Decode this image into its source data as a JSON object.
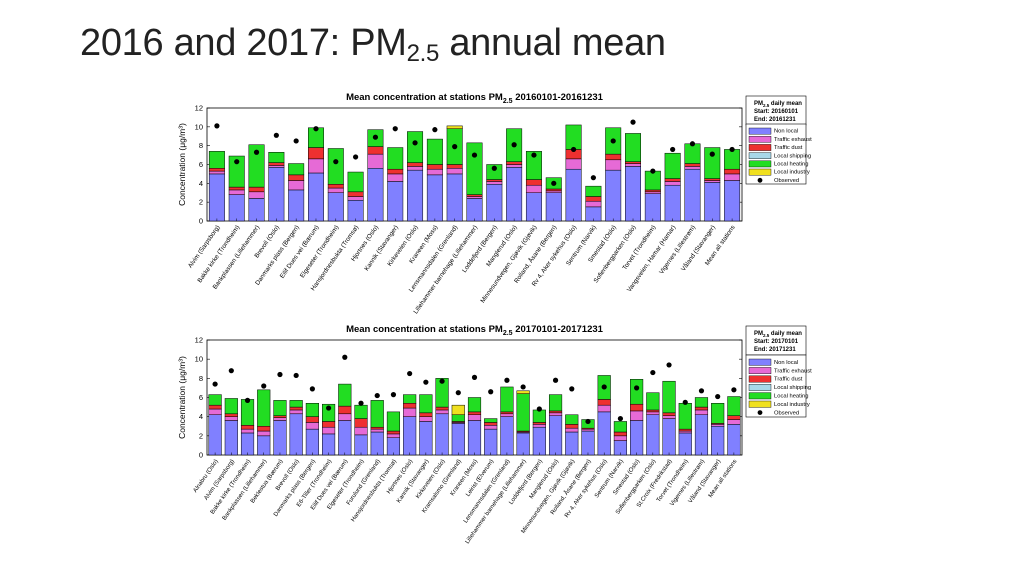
{
  "slide": {
    "title_main": "2016 and 2017: PM",
    "title_sub": "2.5",
    "title_rest": " annual mean"
  },
  "legend_labels": [
    "Non local",
    "Traffic exhaust",
    "Traffic dust",
    "Local shipping",
    "Local heating",
    "Local industry",
    "Observed"
  ],
  "component_colors": [
    "#8080ff",
    "#e66ad6",
    "#ee3030",
    "#a8d8e8",
    "#22dd22",
    "#f0e020"
  ],
  "observed_color": "#000000",
  "chart_data": [
    {
      "type": "bar",
      "stacked": true,
      "title_main": "Mean concentration at stations PM",
      "title_sub": "2.5",
      "title_rest": " 20160101-20161231",
      "ylabel": "Concentration (μg/m³)",
      "ylim": [
        0,
        12
      ],
      "yticks": [
        0,
        2,
        4,
        6,
        8,
        10,
        12
      ],
      "legend_header": {
        "line1": "PM",
        "line1_sub": "2.5",
        "line1_rest": " daily mean",
        "line2": "Start: 20160101",
        "line3": "End:  20161231"
      },
      "categories": [
        "Alvim (Sarpsborg)",
        "Bakke kirke (Trondheim)",
        "Bankplassen (Lillehammer)",
        "Brevoll (Oslo)",
        "Danmarks plass (Bergen)",
        "Eilif Dues vei (Bærum)",
        "Elgeseter (Trondheim)",
        "Hansjordnesbukta (Tromsø)",
        "Hjortnes (Oslo)",
        "Kannik (Stavanger)",
        "Kirkeveien (Oslo)",
        "Kraneen (Moss)",
        "Lensmannsdalen (Grenland)",
        "Lillehammer barnehage (Lillehammer)",
        "Loddefjord (Bergen)",
        "Manglerud (Oslo)",
        "Minnesundvegen, Gjøvik (Gjøvik)",
        "Rolland, Åsane (Bergen)",
        "Rv 4, Aker sykehus (Oslo)",
        "Sentrum (Narvik)",
        "Smestad (Oslo)",
        "Sofienbergparken (Oslo)",
        "Torvet (Trondheim)",
        "Vangsveien, Hamar (Hamar)",
        "Vigernes (Lillestrøm)",
        "Våland (Stavanger)",
        "Mean all stations"
      ],
      "series": [
        {
          "name": "Non local",
          "values": [
            5.0,
            2.8,
            2.4,
            5.7,
            3.3,
            5.1,
            3.0,
            2.2,
            5.6,
            4.2,
            5.4,
            4.9,
            5.0,
            2.4,
            3.9,
            5.7,
            3.0,
            3.0,
            5.5,
            1.5,
            5.4,
            5.8,
            2.9,
            3.8,
            5.5,
            4.1,
            4.3
          ]
        },
        {
          "name": "Traffic exhaust",
          "values": [
            0.3,
            0.5,
            0.7,
            0.2,
            1.0,
            1.5,
            0.5,
            0.4,
            1.5,
            0.8,
            0.4,
            0.6,
            0.6,
            0.2,
            0.3,
            0.3,
            0.8,
            0.2,
            1.1,
            0.6,
            1.1,
            0.3,
            0.2,
            0.4,
            0.3,
            0.2,
            0.7
          ]
        },
        {
          "name": "Traffic dust",
          "values": [
            0.3,
            0.3,
            0.5,
            0.3,
            0.6,
            1.2,
            0.4,
            0.5,
            0.8,
            0.5,
            0.4,
            0.5,
            0.4,
            0.2,
            0.2,
            0.3,
            0.6,
            0.2,
            1.0,
            0.5,
            0.6,
            0.2,
            0.2,
            0.3,
            0.3,
            0.2,
            0.5
          ]
        },
        {
          "name": "Local shipping",
          "values": [
            0,
            0,
            0,
            0,
            0,
            0,
            0,
            0,
            0,
            0,
            0,
            0,
            0,
            0,
            0,
            0,
            0,
            0,
            0,
            0,
            0,
            0,
            0,
            0,
            0,
            0,
            0
          ]
        },
        {
          "name": "Local heating",
          "values": [
            1.8,
            3.3,
            4.5,
            1.1,
            1.2,
            2.1,
            3.8,
            2.1,
            1.8,
            2.3,
            3.3,
            2.7,
            3.8,
            5.5,
            1.6,
            3.5,
            3.0,
            1.2,
            2.6,
            1.1,
            2.8,
            3.0,
            2.0,
            2.7,
            2.1,
            3.3,
            2.1
          ]
        },
        {
          "name": "Local industry",
          "values": [
            0,
            0,
            0,
            0,
            0,
            0,
            0,
            0,
            0,
            0,
            0,
            0,
            0.3,
            0,
            0,
            0,
            0,
            0,
            0,
            0,
            0,
            0,
            0,
            0,
            0,
            0,
            0
          ]
        }
      ],
      "observed": [
        10.1,
        6.3,
        7.3,
        9.1,
        8.5,
        9.8,
        6.3,
        6.8,
        8.9,
        9.8,
        8.3,
        9.7,
        7.9,
        7.0,
        5.6,
        8.1,
        7.0,
        4.0,
        7.6,
        4.6,
        8.5,
        10.5,
        5.3,
        7.6,
        8.2,
        7.1,
        7.6
      ]
    },
    {
      "type": "bar",
      "stacked": true,
      "title_main": "Mean concentration at stations PM",
      "title_sub": "2.5",
      "title_rest": " 20170101-20171231",
      "ylabel": "Concentration (μg/m³)",
      "ylim": [
        0,
        12
      ],
      "yticks": [
        0,
        2,
        4,
        6,
        8,
        10,
        12
      ],
      "legend_header": {
        "line1": "PM",
        "line1_sub": "2.5",
        "line1_rest": " daily mean",
        "line2": "Start: 20170101",
        "line3": "End:  20171231"
      },
      "categories": [
        "Alnabru (Oslo)",
        "Alvim (Sarpsborg)",
        "Bakke kirke (Trondheim)",
        "Bankplassen (Lillehammer)",
        "Beklestua (Bærum)",
        "Brevoll (Oslo)",
        "Danmarks plass (Bergen)",
        "E6-Tiller (Trondheim)",
        "Eilif Dues vei (Bærum)",
        "Elgeseter (Trondheim)",
        "Furulund (Grenland)",
        "Hansjordnesbukta (Tromsø)",
        "Hjortnes (Oslo)",
        "Kannik (Stavanger)",
        "Kirkeveien (Oslo)",
        "Kramsalsmo (Grenland)",
        "Kraneen (Moss)",
        "Leirist (Elverum)",
        "Lensmannsdalen (Grenland)",
        "Lillehammer barnehage (Lillehammer)",
        "Loddefjord (Bergen)",
        "Manglerud (Oslo)",
        "Minnesundvegen, Gjøvik (Gjøvik)",
        "Rolland, Åsane (Bergen)",
        "Rv 4, Aker sykehus (Oslo)",
        "Sentrum (Narvik)",
        "Smestad (Oslo)",
        "Sofienbergparken (Oslo)",
        "St.Croix (Fredrikstad)",
        "Torvet (Trondheim)",
        "Vigernes (Lillestrøm)",
        "Våland (Stavanger)",
        "Mean all stations"
      ],
      "series": [
        {
          "name": "Non local",
          "values": [
            4.2,
            3.6,
            2.3,
            2.0,
            3.6,
            4.3,
            2.7,
            2.2,
            3.6,
            2.1,
            2.4,
            1.8,
            4.0,
            3.5,
            4.3,
            3.3,
            3.6,
            2.7,
            4.0,
            2.3,
            2.9,
            4.1,
            2.4,
            2.5,
            4.5,
            1.5,
            3.6,
            4.2,
            3.8,
            2.3,
            4.2,
            3.0,
            3.2
          ]
        },
        {
          "name": "Traffic exhaust",
          "values": [
            0.6,
            0.4,
            0.4,
            0.5,
            0.3,
            0.4,
            0.7,
            0.7,
            0.7,
            0.8,
            0.3,
            0.4,
            0.9,
            0.5,
            0.4,
            0.1,
            0.6,
            0.4,
            0.3,
            0.1,
            0.3,
            0.3,
            0.4,
            0.2,
            0.7,
            0.5,
            1.0,
            0.3,
            0.3,
            0.2,
            0.5,
            0.2,
            0.5
          ]
        },
        {
          "name": "Traffic dust",
          "values": [
            0.4,
            0.3,
            0.4,
            0.5,
            0.2,
            0.3,
            0.6,
            0.6,
            0.8,
            0.9,
            0.2,
            0.3,
            0.5,
            0.4,
            0.3,
            0.1,
            0.3,
            0.3,
            0.2,
            0.1,
            0.2,
            0.2,
            0.4,
            0.1,
            0.6,
            0.4,
            0.7,
            0.2,
            0.3,
            0.2,
            0.3,
            0.1,
            0.4
          ]
        },
        {
          "name": "Local shipping",
          "values": [
            0,
            0,
            0,
            0,
            0,
            0,
            0,
            0,
            0,
            0,
            0,
            0,
            0,
            0,
            0,
            0,
            0,
            0,
            0,
            0,
            0,
            0,
            0,
            0,
            0,
            0,
            0,
            0,
            0,
            0,
            0,
            0,
            0
          ]
        },
        {
          "name": "Local heating",
          "values": [
            1.1,
            1.6,
            2.7,
            3.8,
            1.6,
            0.7,
            1.4,
            1.8,
            2.3,
            1.4,
            2.8,
            2.0,
            0.9,
            1.9,
            3.0,
            0.7,
            1.5,
            0.4,
            2.6,
            3.9,
            1.3,
            1.7,
            1.0,
            0.9,
            2.5,
            1.1,
            2.6,
            1.8,
            3.3,
            2.7,
            1.0,
            2.1,
            2.0
          ]
        },
        {
          "name": "Local industry",
          "values": [
            0,
            0,
            0,
            0,
            0,
            0,
            0,
            0,
            0,
            0,
            0,
            0,
            0,
            0,
            0,
            1.0,
            0,
            0,
            0,
            0.3,
            0,
            0,
            0,
            0,
            0,
            0,
            0,
            0,
            0,
            0,
            0,
            0,
            0
          ]
        }
      ],
      "observed": [
        7.4,
        8.8,
        5.7,
        7.2,
        8.4,
        8.3,
        6.9,
        4.9,
        10.2,
        5.4,
        6.2,
        6.3,
        8.5,
        7.6,
        7.7,
        6.5,
        8.1,
        6.6,
        7.8,
        7.1,
        4.8,
        7.8,
        6.9,
        3.5,
        7.1,
        3.8,
        7.0,
        8.6,
        9.4,
        5.5,
        6.7,
        6.1,
        6.8
      ]
    }
  ]
}
